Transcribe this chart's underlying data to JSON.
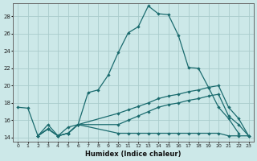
{
  "xlabel": "Humidex (Indice chaleur)",
  "background_color": "#cce8e8",
  "grid_color": "#aacccc",
  "line_color": "#1a6b6e",
  "xlim": [
    -0.5,
    23.5
  ],
  "ylim": [
    13.5,
    29.5
  ],
  "yticks": [
    14,
    16,
    18,
    20,
    22,
    24,
    26,
    28
  ],
  "xticks": [
    0,
    1,
    2,
    3,
    4,
    5,
    6,
    7,
    8,
    9,
    10,
    11,
    12,
    13,
    14,
    15,
    16,
    17,
    18,
    19,
    20,
    21,
    22,
    23
  ],
  "line1_x": [
    0,
    1,
    2,
    3,
    4,
    5,
    6,
    7,
    8,
    9,
    10,
    11,
    12,
    13,
    14,
    15,
    16,
    17,
    18,
    19,
    20,
    21,
    22
  ],
  "line1_y": [
    17.5,
    17.4,
    14.2,
    15.5,
    14.2,
    15.2,
    15.5,
    19.2,
    19.5,
    21.2,
    23.8,
    26.1,
    26.8,
    29.2,
    28.3,
    28.2,
    25.8,
    22.1,
    22.0,
    19.8,
    17.5,
    16.2,
    14.5
  ],
  "line2_x": [
    2,
    3,
    4,
    5,
    6,
    10,
    11,
    12,
    13,
    14,
    15,
    16,
    17,
    18,
    19,
    20,
    21,
    22,
    23
  ],
  "line2_y": [
    14.2,
    15.0,
    14.2,
    14.5,
    15.5,
    16.8,
    17.2,
    17.6,
    18.0,
    18.5,
    18.8,
    19.0,
    19.3,
    19.5,
    19.8,
    20.0,
    17.5,
    16.2,
    14.2
  ],
  "line3_x": [
    2,
    3,
    4,
    5,
    6,
    10,
    11,
    12,
    13,
    14,
    15,
    16,
    17,
    18,
    19,
    20,
    21,
    22,
    23
  ],
  "line3_y": [
    14.2,
    15.0,
    14.2,
    14.5,
    15.5,
    14.5,
    14.5,
    14.5,
    14.5,
    14.5,
    14.5,
    14.5,
    14.5,
    14.5,
    14.5,
    14.5,
    14.2,
    14.2,
    14.2
  ],
  "line4_x": [
    2,
    3,
    4,
    5,
    6,
    10,
    11,
    12,
    13,
    14,
    15,
    16,
    17,
    18,
    19,
    20,
    21,
    22,
    23
  ],
  "line4_y": [
    14.2,
    15.0,
    14.2,
    14.5,
    15.5,
    15.5,
    16.0,
    16.5,
    17.0,
    17.5,
    17.8,
    18.0,
    18.3,
    18.5,
    18.8,
    19.0,
    16.5,
    15.5,
    14.2
  ]
}
